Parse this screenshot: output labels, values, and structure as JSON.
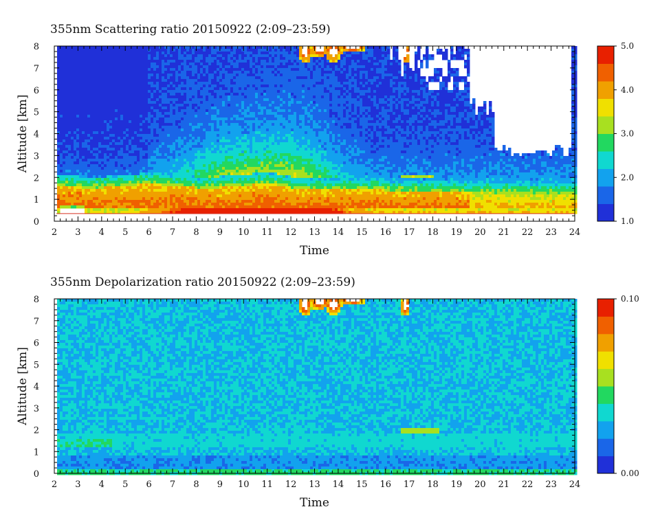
{
  "chart_data": [
    {
      "type": "heatmap",
      "title": "355nm Scattering ratio  20150922 (2:09–23:59)",
      "xlabel": "Time",
      "ylabel": "Altitude [km]",
      "xlim": [
        2,
        24
      ],
      "ylim": [
        0,
        8
      ],
      "xticks": [
        "2",
        "3",
        "4",
        "5",
        "6",
        "7",
        "8",
        "9",
        "10",
        "11",
        "12",
        "13",
        "14",
        "15",
        "16",
        "17",
        "18",
        "19",
        "20",
        "21",
        "22",
        "23",
        "24"
      ],
      "yticks": [
        "0",
        "1",
        "2",
        "3",
        "4",
        "5",
        "6",
        "7",
        "8"
      ],
      "colorbar": {
        "range": [
          1.0,
          5.0
        ],
        "ticks": [
          "1.0",
          "2.0",
          "3.0",
          "4.0",
          "5.0"
        ],
        "tick_values": [
          1,
          2,
          3,
          4,
          5
        ]
      },
      "features": {
        "boundary_layer_top_km": 1.6,
        "boundary_layer_value": 4.5,
        "surface_line_km": 0.35,
        "cloud_tops_hours": [
          12.5,
          13.0,
          13.5,
          14.0,
          16.8
        ]
      }
    },
    {
      "type": "heatmap",
      "title": "355nm Depolarization ratio  20150922 (2:09–23:59)",
      "xlabel": "Time",
      "ylabel": "Altitude [km]",
      "xlim": [
        2,
        24
      ],
      "ylim": [
        0,
        8
      ],
      "xticks": [
        "2",
        "3",
        "4",
        "5",
        "6",
        "7",
        "8",
        "9",
        "10",
        "11",
        "12",
        "13",
        "14",
        "15",
        "16",
        "17",
        "18",
        "19",
        "20",
        "21",
        "22",
        "23",
        "24"
      ],
      "yticks": [
        "0",
        "1",
        "2",
        "3",
        "4",
        "5",
        "6",
        "7",
        "8"
      ],
      "colorbar": {
        "range": [
          0.0,
          0.1
        ],
        "ticks": [
          "0.00",
          "0.10"
        ],
        "tick_values": [
          0.0,
          0.1
        ]
      },
      "features": {
        "background_value": 0.035,
        "cloud_tops_hours": [
          12.5,
          13.0,
          13.5,
          14.0,
          16.8
        ]
      }
    }
  ],
  "colors": {
    "scale": [
      "#2030d8",
      "#1a66e8",
      "#12a2ee",
      "#10d8d0",
      "#22d860",
      "#a8e020",
      "#f0e000",
      "#f0a000",
      "#f06000",
      "#e82000"
    ],
    "surface_line": "#d83020"
  }
}
